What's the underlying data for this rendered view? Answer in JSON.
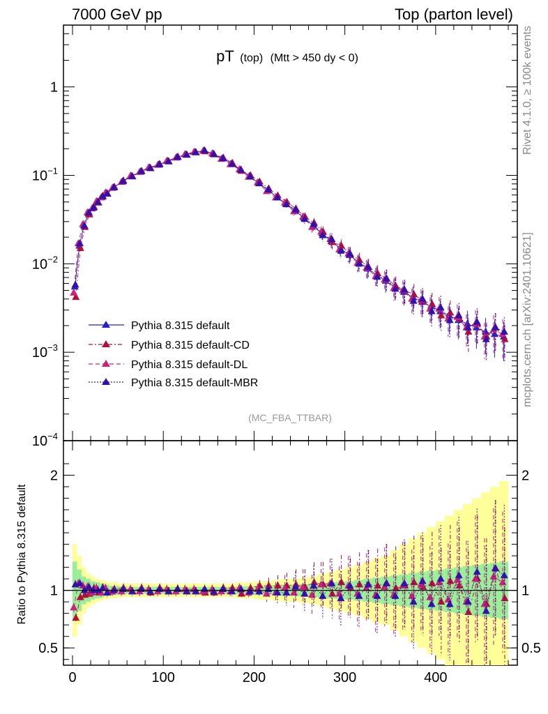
{
  "header": {
    "left": "7000 GeV pp",
    "right": "Top (parton level)"
  },
  "side_labels": {
    "rivet": "Rivet 4.1.0, ≥ 100k events",
    "mcplots": "mcplots.cern.ch [arXiv:2401.10621]"
  },
  "chart_data": {
    "type": "scatter",
    "title": "pT",
    "title_sub": "(top)",
    "title_cut": "(Mtt > 450 dy < 0)",
    "analysis_label": "(MC_FBA_TTBAR)",
    "ratio_ylabel": "Ratio to Pythia 8.315 default",
    "xlim": [
      -10,
      490
    ],
    "ylim_log": [
      0.0001,
      5
    ],
    "ratio_ylim": [
      0.35,
      2.3
    ],
    "main_ticks": [
      "10^-4",
      "10^-3",
      "10^-2",
      "10^-1",
      "1"
    ],
    "main_tick_values": [
      0.0001,
      0.001,
      0.01,
      0.1,
      1
    ],
    "ratio_ticks": [
      "0.5",
      "1",
      "2"
    ],
    "ratio_tick_values": [
      0.5,
      1,
      2
    ],
    "x_ticks": [
      "0",
      "100",
      "200",
      "300",
      "400"
    ],
    "x_tick_values": [
      0,
      100,
      200,
      300,
      400
    ],
    "x": [
      2.5,
      7.5,
      12.5,
      17.5,
      22.5,
      27.5,
      32.5,
      37.5,
      45,
      55,
      65,
      75,
      85,
      95,
      105,
      115,
      125,
      135,
      145,
      155,
      165,
      175,
      185,
      195,
      205,
      215,
      225,
      235,
      245,
      255,
      265,
      275,
      285,
      295,
      305,
      315,
      325,
      335,
      345,
      355,
      365,
      375,
      385,
      395,
      405,
      415,
      425,
      435,
      445,
      455,
      465,
      475
    ],
    "series": [
      {
        "name": "Pythia 8.315 default",
        "color": "#2222cc",
        "values": [
          0.0055,
          0.016,
          0.027,
          0.037,
          0.043,
          0.05,
          0.057,
          0.063,
          0.073,
          0.085,
          0.098,
          0.11,
          0.122,
          0.132,
          0.145,
          0.16,
          0.172,
          0.183,
          0.19,
          0.175,
          0.155,
          0.135,
          0.115,
          0.098,
          0.082,
          0.068,
          0.057,
          0.048,
          0.04,
          0.033,
          0.027,
          0.022,
          0.018,
          0.015,
          0.0125,
          0.0105,
          0.0088,
          0.0075,
          0.0064,
          0.0055,
          0.0048,
          0.0042,
          0.0037,
          0.0033,
          0.0029,
          0.0026,
          0.0023,
          0.0021,
          0.0019,
          0.0017,
          0.0016,
          0.0015
        ],
        "ratio": [
          1,
          1,
          1,
          1,
          1,
          1,
          1,
          1,
          1,
          1,
          1,
          1,
          1,
          1,
          1,
          1,
          1,
          1,
          1,
          1,
          1,
          1,
          1,
          1,
          1,
          1,
          1,
          1,
          1,
          1,
          1,
          1,
          1,
          1,
          1,
          1,
          1,
          1,
          1,
          1,
          1,
          1,
          1,
          1,
          1,
          1,
          1,
          1,
          1,
          1,
          1,
          1
        ],
        "band_stat": [
          0.25,
          0.18,
          0.12,
          0.1,
          0.08,
          0.07,
          0.06,
          0.05,
          0.04,
          0.035,
          0.03,
          0.03,
          0.03,
          0.03,
          0.03,
          0.03,
          0.03,
          0.03,
          0.03,
          0.03,
          0.03,
          0.03,
          0.035,
          0.035,
          0.04,
          0.04,
          0.045,
          0.05,
          0.05,
          0.055,
          0.06,
          0.065,
          0.07,
          0.075,
          0.08,
          0.09,
          0.1,
          0.11,
          0.12,
          0.13,
          0.14,
          0.15,
          0.16,
          0.17,
          0.18,
          0.19,
          0.2,
          0.21,
          0.22,
          0.23,
          0.24,
          0.25
        ],
        "band_total": [
          0.4,
          0.3,
          0.2,
          0.15,
          0.12,
          0.1,
          0.09,
          0.08,
          0.07,
          0.06,
          0.06,
          0.06,
          0.06,
          0.06,
          0.06,
          0.06,
          0.06,
          0.06,
          0.06,
          0.06,
          0.06,
          0.06,
          0.07,
          0.07,
          0.08,
          0.08,
          0.09,
          0.1,
          0.1,
          0.11,
          0.12,
          0.14,
          0.16,
          0.18,
          0.2,
          0.22,
          0.25,
          0.28,
          0.3,
          0.35,
          0.4,
          0.45,
          0.5,
          0.55,
          0.6,
          0.65,
          0.7,
          0.75,
          0.8,
          0.85,
          0.9,
          0.95
        ]
      },
      {
        "name": "Pythia 8.315 default-CD",
        "color": "#b0103a",
        "values": [
          0.0042,
          0.015,
          0.026,
          0.036,
          0.044,
          0.049,
          0.058,
          0.062,
          0.074,
          0.087,
          0.097,
          0.112,
          0.12,
          0.134,
          0.143,
          0.162,
          0.17,
          0.181,
          0.186,
          0.172,
          0.158,
          0.138,
          0.112,
          0.1,
          0.085,
          0.071,
          0.059,
          0.05,
          0.042,
          0.034,
          0.029,
          0.023,
          0.0175,
          0.016,
          0.0128,
          0.011,
          0.0092,
          0.0078,
          0.0068,
          0.0056,
          0.005,
          0.0045,
          0.0038,
          0.0035,
          0.0026,
          0.0028,
          0.0024,
          0.0017,
          0.0021,
          0.0015,
          0.0019,
          0.0014
        ],
        "ratio": [
          0.76,
          0.94,
          0.96,
          0.97,
          1.02,
          0.98,
          1.02,
          0.98,
          1.01,
          1.02,
          0.99,
          1.02,
          0.98,
          1.02,
          0.99,
          1.01,
          0.99,
          0.99,
          0.98,
          0.98,
          1.02,
          1.02,
          0.97,
          1.02,
          1.04,
          1.04,
          1.04,
          1.04,
          1.05,
          1.03,
          1.07,
          1.05,
          0.97,
          1.07,
          1.02,
          1.05,
          1.05,
          1.04,
          1.06,
          1.02,
          1.04,
          1.07,
          1.03,
          1.06,
          0.9,
          1.08,
          1.04,
          0.81,
          1.1,
          0.88,
          1.19,
          0.93
        ]
      },
      {
        "name": "Pythia 8.315 default-DL",
        "color": "#cc2277",
        "values": [
          0.0047,
          0.017,
          0.028,
          0.038,
          0.042,
          0.051,
          0.056,
          0.064,
          0.072,
          0.084,
          0.099,
          0.109,
          0.123,
          0.131,
          0.146,
          0.158,
          0.173,
          0.184,
          0.189,
          0.177,
          0.153,
          0.133,
          0.117,
          0.096,
          0.083,
          0.066,
          0.056,
          0.049,
          0.039,
          0.034,
          0.026,
          0.023,
          0.019,
          0.0145,
          0.013,
          0.0102,
          0.009,
          0.0072,
          0.0066,
          0.0053,
          0.005,
          0.004,
          0.0039,
          0.0031,
          0.0031,
          0.0024,
          0.0025,
          0.0019,
          0.0021,
          0.0015,
          0.0018,
          0.0016
        ],
        "ratio": [
          0.85,
          1.06,
          1.04,
          1.03,
          0.98,
          1.02,
          0.98,
          1.02,
          0.99,
          0.99,
          1.01,
          0.99,
          1.01,
          0.99,
          1.01,
          0.99,
          1.01,
          1.01,
          0.99,
          1.01,
          0.99,
          0.99,
          1.02,
          0.98,
          1.01,
          0.97,
          0.98,
          1.02,
          0.98,
          1.03,
          0.96,
          1.05,
          1.06,
          0.97,
          1.04,
          0.97,
          1.02,
          0.96,
          1.03,
          0.96,
          1.04,
          0.95,
          1.05,
          0.94,
          1.07,
          0.92,
          1.09,
          0.9,
          1.1,
          0.88,
          1.12,
          1.07
        ]
      },
      {
        "name": "Pythia 8.315 default-MBR",
        "color": "#3311aa",
        "values": [
          0.0058,
          0.017,
          0.027,
          0.038,
          0.043,
          0.05,
          0.058,
          0.062,
          0.073,
          0.086,
          0.097,
          0.111,
          0.121,
          0.133,
          0.144,
          0.161,
          0.171,
          0.182,
          0.191,
          0.174,
          0.156,
          0.134,
          0.116,
          0.097,
          0.081,
          0.069,
          0.056,
          0.047,
          0.041,
          0.032,
          0.028,
          0.021,
          0.019,
          0.014,
          0.013,
          0.01,
          0.0092,
          0.0071,
          0.0068,
          0.0052,
          0.0051,
          0.0038,
          0.004,
          0.0029,
          0.0032,
          0.0023,
          0.0026,
          0.0019,
          0.0022,
          0.0014,
          0.0019,
          0.0017
        ],
        "ratio": [
          1.05,
          1.06,
          1.0,
          1.03,
          1.0,
          1.0,
          1.02,
          0.98,
          1.0,
          1.01,
          0.99,
          1.01,
          0.99,
          1.01,
          0.99,
          1.01,
          0.99,
          0.99,
          1.01,
          0.99,
          1.01,
          0.99,
          1.01,
          0.99,
          0.99,
          1.01,
          0.98,
          0.98,
          1.03,
          0.97,
          1.04,
          0.95,
          1.06,
          0.93,
          1.04,
          0.95,
          1.05,
          0.95,
          1.06,
          0.95,
          1.06,
          0.9,
          1.08,
          0.88,
          1.1,
          0.88,
          1.13,
          0.9,
          1.16,
          0.82,
          1.19,
          1.13
        ]
      }
    ]
  }
}
